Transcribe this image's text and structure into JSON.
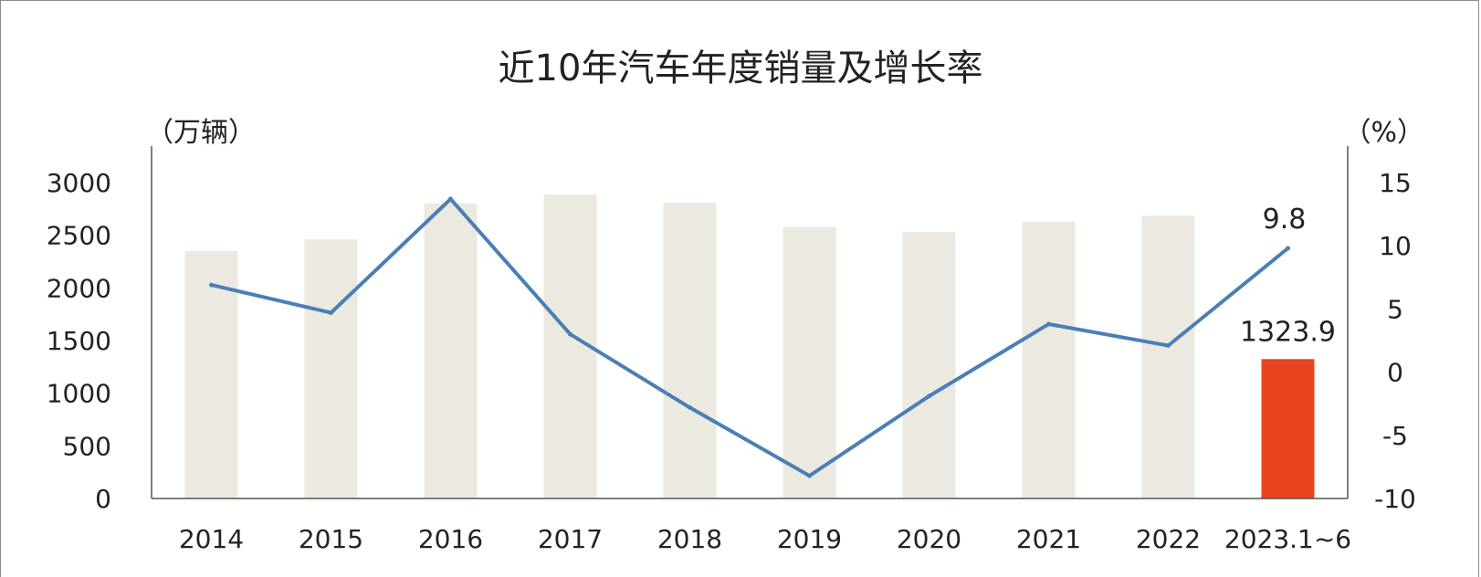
{
  "chart_data": {
    "type": "bar",
    "title": "近10年汽车年度销量及增长率",
    "left_unit": "（万辆）",
    "right_unit": "（%）",
    "categories": [
      "2014",
      "2015",
      "2016",
      "2017",
      "2018",
      "2019",
      "2020",
      "2021",
      "2022",
      "2023.1~6"
    ],
    "series": [
      {
        "kind": "bar",
        "axis": "left",
        "values": [
          2349,
          2460,
          2803,
          2888,
          2808,
          2577,
          2531,
          2628,
          2686,
          1323.9
        ],
        "color": "#ece9e0",
        "highlight_color": "#e8441d",
        "highlight_index": 9
      },
      {
        "kind": "line",
        "axis": "right",
        "values": [
          6.9,
          4.7,
          13.7,
          3.0,
          -2.8,
          -8.2,
          -1.9,
          3.8,
          2.1,
          9.8
        ],
        "color": "#4a7fb6"
      }
    ],
    "y_left": {
      "min": 0,
      "max": 3000,
      "ticks": [
        "0",
        "500",
        "1000",
        "1500",
        "2000",
        "2500",
        "3000"
      ]
    },
    "y_right": {
      "min": -10,
      "max": 15,
      "ticks": [
        "-10",
        "-5",
        "0",
        "5",
        "10",
        "15"
      ]
    },
    "data_labels": {
      "bar_last": "1323.9",
      "line_last": "9.8"
    },
    "grid": false
  }
}
